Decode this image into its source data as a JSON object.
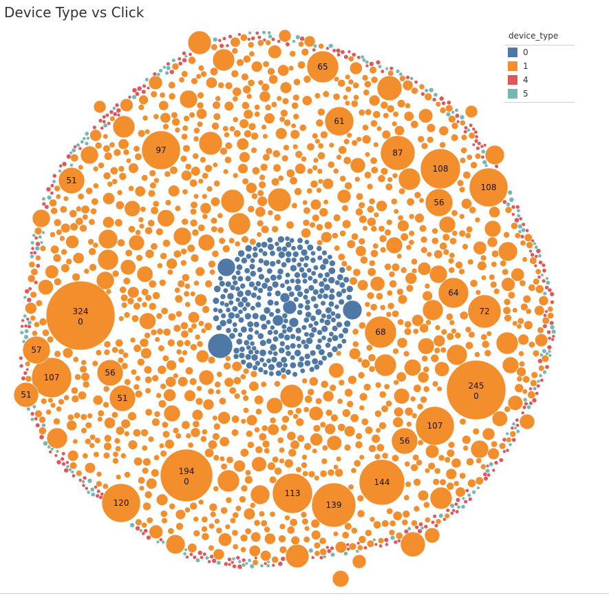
{
  "title": "Device  Type vs Click",
  "legend": {
    "title": "device_type",
    "items": [
      {
        "label": "0",
        "color": "#4e79a7"
      },
      {
        "label": "1",
        "color": "#f28e2b"
      },
      {
        "label": "4",
        "color": "#e15759"
      },
      {
        "label": "5",
        "color": "#76b7b2"
      }
    ]
  },
  "chart_data": {
    "type": "packed-bubble",
    "color_field": "device_type",
    "labeled_bubbles": [
      {
        "label": [
          "324",
          "0"
        ],
        "device_type": "1"
      },
      {
        "label": [
          "245",
          "0"
        ],
        "device_type": "1"
      },
      {
        "label": [
          "194",
          "0"
        ],
        "device_type": "1"
      },
      {
        "label": [
          "144"
        ],
        "device_type": "1"
      },
      {
        "label": [
          "139"
        ],
        "device_type": "1"
      },
      {
        "label": [
          "120"
        ],
        "device_type": "1"
      },
      {
        "label": [
          "113"
        ],
        "device_type": "1"
      },
      {
        "label": [
          "108"
        ],
        "device_type": "1"
      },
      {
        "label": [
          "108"
        ],
        "device_type": "1"
      },
      {
        "label": [
          "107"
        ],
        "device_type": "1"
      },
      {
        "label": [
          "107"
        ],
        "device_type": "1"
      },
      {
        "label": [
          "97"
        ],
        "device_type": "1"
      },
      {
        "label": [
          "87"
        ],
        "device_type": "1"
      },
      {
        "label": [
          "72"
        ],
        "device_type": "1"
      },
      {
        "label": [
          "68"
        ],
        "device_type": "1"
      },
      {
        "label": [
          "65"
        ],
        "device_type": "1"
      },
      {
        "label": [
          "64"
        ],
        "device_type": "1"
      },
      {
        "label": [
          "61"
        ],
        "device_type": "1"
      },
      {
        "label": [
          "57"
        ],
        "device_type": "1"
      },
      {
        "label": [
          "56"
        ],
        "device_type": "1"
      },
      {
        "label": [
          "56"
        ],
        "device_type": "1"
      },
      {
        "label": [
          "56"
        ],
        "device_type": "1"
      },
      {
        "label": [
          "51"
        ],
        "device_type": "1"
      },
      {
        "label": [
          "51"
        ],
        "device_type": "1"
      },
      {
        "label": [
          "51"
        ],
        "device_type": "1"
      }
    ]
  }
}
